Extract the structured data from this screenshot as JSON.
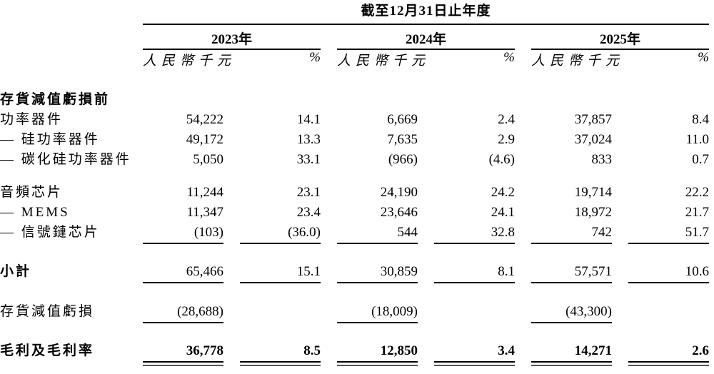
{
  "table": {
    "title": "截至12月31日止年度",
    "year_groups": [
      {
        "year": "2023年",
        "unit": "人民幣千元",
        "pct": "%"
      },
      {
        "year": "2024年",
        "unit": "人民幣千元",
        "pct": "%"
      },
      {
        "year": "2025年",
        "unit": "人民幣千元",
        "pct": "%"
      }
    ],
    "rows": [
      {
        "label": "存貨減值虧損前",
        "values": [
          "",
          "",
          "",
          "",
          "",
          ""
        ]
      },
      {
        "label": "功率器件",
        "values": [
          "54,222",
          "14.1",
          "6,669",
          "2.4",
          "37,857",
          "8.4"
        ]
      },
      {
        "label": "— 硅功率器件",
        "values": [
          "49,172",
          "13.3",
          "7,635",
          "2.9",
          "37,024",
          "11.0"
        ]
      },
      {
        "label": "— 碳化硅功率器件",
        "values": [
          "5,050",
          "33.1",
          "(966)",
          "(4.6)",
          "833",
          "0.7"
        ]
      },
      {
        "label": "音頻芯片",
        "values": [
          "11,244",
          "23.1",
          "24,190",
          "24.2",
          "19,714",
          "22.2"
        ]
      },
      {
        "label": "— MEMS",
        "values": [
          "11,347",
          "23.4",
          "23,646",
          "24.1",
          "18,972",
          "21.7"
        ]
      },
      {
        "label": "— 信號鏈芯片",
        "values": [
          "(103)",
          "(36.0)",
          "544",
          "32.8",
          "742",
          "51.7"
        ]
      },
      {
        "label": "小計",
        "values": [
          "65,466",
          "15.1",
          "30,859",
          "8.1",
          "57,571",
          "10.6"
        ]
      },
      {
        "label": "存貨減值虧損",
        "values": [
          "(28,688)",
          "",
          "(18,009)",
          "",
          "(43,300)",
          ""
        ]
      },
      {
        "label": "毛利及毛利率",
        "values": [
          "36,778",
          "8.5",
          "12,850",
          "3.4",
          "14,271",
          "2.6"
        ]
      }
    ],
    "colors": {
      "text": "#000000",
      "rule": "#000000",
      "background": "#ffffff"
    }
  }
}
